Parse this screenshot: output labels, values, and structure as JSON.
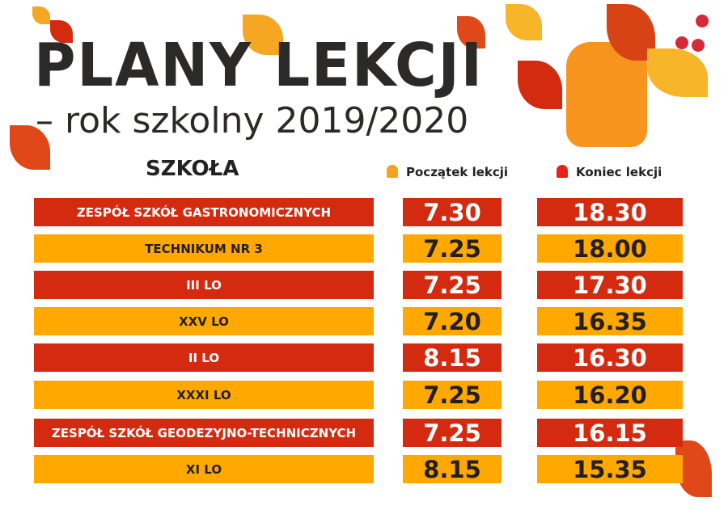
{
  "header": {
    "title": "PLANY LEKCJI",
    "subtitle": "– rok szkolny 2019/2020"
  },
  "columns": {
    "school": "SZKOŁA",
    "start": "Początek lekcji",
    "end": "Koniec lekcji",
    "start_icon": "bell-icon",
    "end_icon": "bell-icon"
  },
  "colors": {
    "red": "#d42a10",
    "orange": "#ffa800",
    "start_bell": "#f7a21b",
    "end_bell": "#e8211b"
  },
  "rows": [
    {
      "school": "ZESPÓŁ SZKÓŁ GASTRONOMICZNYCH",
      "start": "7.30",
      "end": "18.30",
      "color": "red"
    },
    {
      "school": "TECHNIKUM NR 3",
      "start": "7.25",
      "end": "18.00",
      "color": "orange"
    },
    {
      "school": "III LO",
      "start": "7.25",
      "end": "17.30",
      "color": "red"
    },
    {
      "school": "XXV LO",
      "start": "7.20",
      "end": "16.35",
      "color": "orange"
    },
    {
      "school": "II LO",
      "start": "8.15",
      "end": "16.30",
      "color": "red"
    },
    {
      "school": "XXXI LO",
      "start": "7.25",
      "end": "16.20",
      "color": "orange"
    },
    {
      "school": "ZESPÓŁ SZKÓŁ GEODEZYJNO-TECHNICZNYCH",
      "start": "7.25",
      "end": "16.15",
      "color": "red"
    },
    {
      "school": "XI LO",
      "start": "8.15",
      "end": "15.35",
      "color": "orange"
    }
  ]
}
